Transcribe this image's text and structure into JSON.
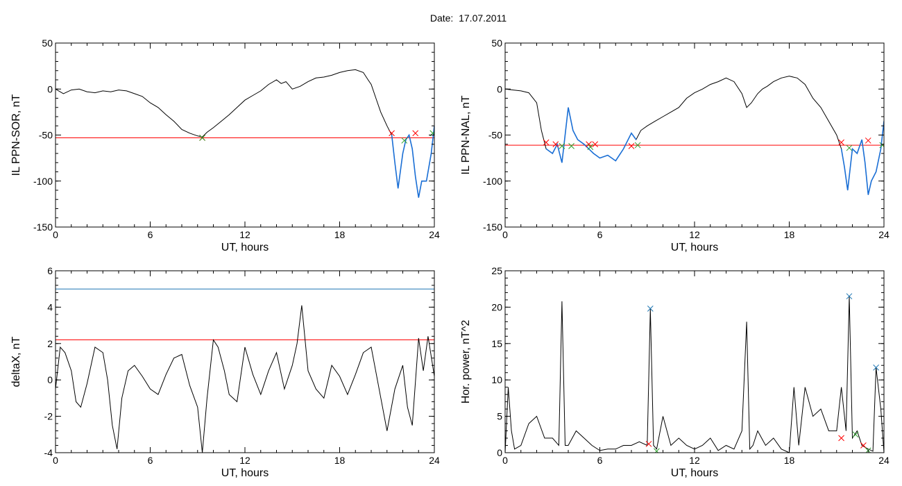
{
  "page": {
    "title": "Date:  17.07.2011"
  },
  "chart_data": [
    {
      "id": "il-sor",
      "type": "line",
      "ylabel": "IL PPN-SOR, nT",
      "xlabel": "UT, hours",
      "xlim": [
        0,
        24
      ],
      "ylim": [
        -150,
        50
      ],
      "xticks": [
        "0",
        "6",
        "12",
        "18",
        "24"
      ],
      "yticks": [
        "50",
        "0",
        "-50",
        "-100",
        "-150"
      ],
      "ytick_values": [
        50,
        0,
        -50,
        -100,
        -150
      ],
      "line_color": "#000000",
      "series": [
        {
          "x": [
            0,
            0.5,
            1,
            1.5,
            2,
            2.5,
            3,
            3.5,
            4,
            4.5,
            5,
            5.5,
            6,
            6.5,
            7,
            7.5,
            8,
            8.5,
            9,
            9.3,
            9.6,
            10,
            10.5,
            11,
            11.5,
            12,
            12.5,
            13,
            13.5,
            14,
            14.3,
            14.6,
            15,
            15.5,
            16,
            16.5,
            17,
            17.5,
            18,
            18.5,
            19,
            19.5,
            19.8,
            20,
            20.3,
            20.6,
            21,
            21.3,
            21.5,
            21.7,
            22,
            22.2,
            22.4,
            22.6,
            22.8,
            23,
            23.2,
            23.5,
            23.8,
            24
          ],
          "y": [
            0,
            -5,
            -1,
            0,
            -3,
            -4,
            -2,
            -3,
            -1,
            -2,
            -5,
            -8,
            -15,
            -20,
            -28,
            -35,
            -44,
            -48,
            -51,
            -52,
            -47,
            -42,
            -35,
            -28,
            -20,
            -12,
            -7,
            -2,
            5,
            10,
            6,
            8,
            0,
            3,
            8,
            12,
            13,
            15,
            18,
            20,
            21,
            18,
            10,
            5,
            -10,
            -25,
            -40,
            -50,
            -80,
            -108,
            -70,
            -55,
            -50,
            -65,
            -95,
            -118,
            -100,
            -100,
            -70,
            -40
          ]
        }
      ],
      "threshold": {
        "y": -53,
        "color": "#ff0000"
      },
      "highlight": {
        "color": "#1a6fd6",
        "ranges": [
          [
            21.2,
            24
          ]
        ]
      },
      "markers": [
        {
          "x": 9.3,
          "y": -53,
          "color": "#ff0000"
        },
        {
          "x": 9.3,
          "y": -53,
          "color": "#2ca02c"
        },
        {
          "x": 21.3,
          "y": -48,
          "color": "#ff0000"
        },
        {
          "x": 22.1,
          "y": -56,
          "color": "#2ca02c"
        },
        {
          "x": 22.8,
          "y": -48,
          "color": "#ff0000"
        },
        {
          "x": 23.9,
          "y": -48,
          "color": "#2ca02c"
        }
      ]
    },
    {
      "id": "il-nal",
      "type": "line",
      "ylabel": "IL PPN-NAL, nT",
      "xlabel": "UT, hours",
      "xlim": [
        0,
        24
      ],
      "ylim": [
        -150,
        50
      ],
      "xticks": [
        "0",
        "6",
        "12",
        "18",
        "24"
      ],
      "yticks": [
        "50",
        "0",
        "-50",
        "-100",
        "-150"
      ],
      "ytick_values": [
        50,
        0,
        -50,
        -100,
        -150
      ],
      "line_color": "#000000",
      "series": [
        {
          "x": [
            0,
            0.5,
            1,
            1.5,
            2,
            2.3,
            2.6,
            3,
            3.3,
            3.6,
            4,
            4.3,
            4.6,
            5,
            5.3,
            5.6,
            6,
            6.5,
            7,
            7.5,
            8,
            8.3,
            8.6,
            9,
            9.5,
            10,
            10.5,
            11,
            11.5,
            12,
            12.5,
            13,
            13.5,
            14,
            14.5,
            15,
            15.3,
            15.6,
            16,
            16.3,
            16.6,
            17,
            17.5,
            18,
            18.5,
            19,
            19.5,
            20,
            20.5,
            21,
            21.3,
            21.5,
            21.7,
            22,
            22.3,
            22.6,
            22.8,
            23,
            23.2,
            23.5,
            23.8,
            24
          ],
          "y": [
            0,
            -1,
            -2,
            -4,
            -15,
            -45,
            -65,
            -70,
            -60,
            -80,
            -20,
            -45,
            -55,
            -60,
            -65,
            -70,
            -75,
            -72,
            -78,
            -65,
            -48,
            -55,
            -45,
            -40,
            -35,
            -30,
            -25,
            -20,
            -10,
            -4,
            0,
            5,
            8,
            12,
            8,
            -5,
            -20,
            -15,
            -5,
            0,
            3,
            8,
            12,
            14,
            12,
            5,
            -10,
            -20,
            -35,
            -50,
            -65,
            -85,
            -110,
            -65,
            -70,
            -55,
            -80,
            -115,
            -100,
            -90,
            -65,
            -35
          ]
        }
      ],
      "threshold": {
        "y": -61,
        "color": "#ff0000"
      },
      "highlight": {
        "color": "#1a6fd6",
        "ranges": [
          [
            2.6,
            8.4
          ],
          [
            21.3,
            24
          ]
        ]
      },
      "markers": [
        {
          "x": 2.6,
          "y": -58,
          "color": "#ff0000"
        },
        {
          "x": 3.2,
          "y": -60,
          "color": "#ff0000"
        },
        {
          "x": 3.6,
          "y": -62,
          "color": "#2ca02c"
        },
        {
          "x": 4.2,
          "y": -62,
          "color": "#2ca02c"
        },
        {
          "x": 5.3,
          "y": -60,
          "color": "#ff0000"
        },
        {
          "x": 5.4,
          "y": -63,
          "color": "#2ca02c"
        },
        {
          "x": 5.7,
          "y": -60,
          "color": "#ff0000"
        },
        {
          "x": 8.0,
          "y": -62,
          "color": "#ff0000"
        },
        {
          "x": 8.4,
          "y": -61,
          "color": "#2ca02c"
        },
        {
          "x": 21.3,
          "y": -58,
          "color": "#ff0000"
        },
        {
          "x": 21.8,
          "y": -64,
          "color": "#2ca02c"
        },
        {
          "x": 23.0,
          "y": -56,
          "color": "#ff0000"
        },
        {
          "x": 23.9,
          "y": -61,
          "color": "#2ca02c"
        }
      ]
    },
    {
      "id": "deltax",
      "type": "line",
      "ylabel": "deltaX, nT",
      "xlabel": "UT, hours",
      "xlim": [
        0,
        24
      ],
      "ylim": [
        -4,
        6
      ],
      "xticks": [
        "0",
        "6",
        "12",
        "18",
        "24"
      ],
      "yticks": [
        "6",
        "4",
        "2",
        "0",
        "-2",
        "-4"
      ],
      "ytick_values": [
        6,
        4,
        2,
        0,
        -2,
        -4
      ],
      "line_color": "#000000",
      "series": [
        {
          "x": [
            0,
            0.3,
            0.6,
            1,
            1.3,
            1.6,
            2,
            2.5,
            3,
            3.3,
            3.6,
            3.9,
            4.2,
            4.6,
            5,
            5.5,
            6,
            6.5,
            7,
            7.5,
            8,
            8.5,
            9,
            9.3,
            9.6,
            10,
            10.3,
            10.7,
            11,
            11.5,
            12,
            12.5,
            13,
            13.5,
            14,
            14.5,
            15,
            15.3,
            15.6,
            16,
            16.5,
            17,
            17.5,
            18,
            18.5,
            19,
            19.5,
            20,
            20.5,
            21,
            21.5,
            22,
            22.3,
            22.6,
            23,
            23.3,
            23.6,
            24
          ],
          "y": [
            -0.5,
            1.8,
            1.5,
            0.5,
            -1.2,
            -1.5,
            -0.2,
            1.8,
            1.5,
            0,
            -2.5,
            -3.8,
            -1,
            0.5,
            0.8,
            0.2,
            -0.5,
            -0.8,
            0.3,
            1.2,
            1.4,
            -0.3,
            -1.5,
            -4,
            -1,
            2.2,
            1.8,
            0.5,
            -0.8,
            -1.2,
            1.8,
            0.3,
            -0.8,
            0.5,
            1.5,
            -0.5,
            0.8,
            2,
            4.1,
            0.5,
            -0.5,
            -1,
            0.8,
            0.2,
            -0.8,
            0.3,
            1.5,
            1.8,
            -0.5,
            -2.8,
            -0.5,
            0.8,
            -1.5,
            -2.5,
            2.3,
            0.5,
            2.4,
            0.2
          ]
        }
      ],
      "hlines": [
        {
          "y": 5.0,
          "color": "#1f77b4"
        },
        {
          "y": 2.2,
          "color": "#ff0000"
        }
      ],
      "markers": []
    },
    {
      "id": "hor-power",
      "type": "line",
      "ylabel": "Hor. power, nT^2",
      "xlabel": "UT, hours",
      "xlim": [
        0,
        24
      ],
      "ylim": [
        0,
        25
      ],
      "xticks": [
        "0",
        "6",
        "12",
        "18",
        "24"
      ],
      "yticks": [
        "25",
        "20",
        "15",
        "10",
        "5",
        "0"
      ],
      "ytick_values": [
        25,
        20,
        15,
        10,
        5,
        0
      ],
      "line_color": "#000000",
      "series": [
        {
          "x": [
            0,
            0.2,
            0.4,
            0.6,
            1,
            1.5,
            2,
            2.5,
            3,
            3.4,
            3.6,
            3.8,
            4,
            4.5,
            5,
            5.5,
            6,
            6.5,
            7,
            7.5,
            8,
            8.5,
            9,
            9.2,
            9.4,
            9.6,
            10,
            10.5,
            11,
            11.5,
            12,
            12.5,
            13,
            13.5,
            14,
            14.5,
            15,
            15.3,
            15.5,
            15.7,
            16,
            16.5,
            17,
            17.5,
            18,
            18.3,
            18.6,
            19,
            19.5,
            20,
            20.5,
            21,
            21.3,
            21.6,
            21.8,
            22,
            22.3,
            22.6,
            23,
            23.3,
            23.5,
            23.8,
            24
          ],
          "y": [
            0,
            9,
            3,
            0.5,
            1,
            4,
            5,
            2,
            2,
            1,
            20.8,
            1,
            1,
            3,
            2,
            1,
            0.3,
            0.5,
            0.5,
            1,
            1,
            1.5,
            1,
            19.8,
            1,
            0.5,
            5,
            1,
            2,
            1,
            0.5,
            1,
            2,
            0.3,
            1,
            0.5,
            3,
            18,
            0.5,
            1,
            3,
            1,
            2,
            0.5,
            0,
            9,
            1,
            9,
            5,
            6,
            3,
            3,
            9,
            3,
            21.5,
            2,
            3,
            1,
            0.5,
            0.2,
            11.7,
            6,
            0
          ]
        }
      ],
      "hlines": [
        {
          "y": 25,
          "color": "#ff0000"
        }
      ],
      "markers": [
        {
          "x": 9.2,
          "y": 19.8,
          "color": "#1f77b4"
        },
        {
          "x": 21.8,
          "y": 21.5,
          "color": "#1f77b4"
        },
        {
          "x": 23.5,
          "y": 11.7,
          "color": "#1f77b4"
        },
        {
          "x": 9.1,
          "y": 1.2,
          "color": "#ff0000"
        },
        {
          "x": 9.6,
          "y": 0.2,
          "color": "#2ca02c"
        },
        {
          "x": 21.3,
          "y": 2.0,
          "color": "#ff0000"
        },
        {
          "x": 22.2,
          "y": 2.5,
          "color": "#2ca02c"
        },
        {
          "x": 22.7,
          "y": 1.0,
          "color": "#ff0000"
        },
        {
          "x": 23.0,
          "y": 0.3,
          "color": "#2ca02c"
        }
      ]
    }
  ]
}
